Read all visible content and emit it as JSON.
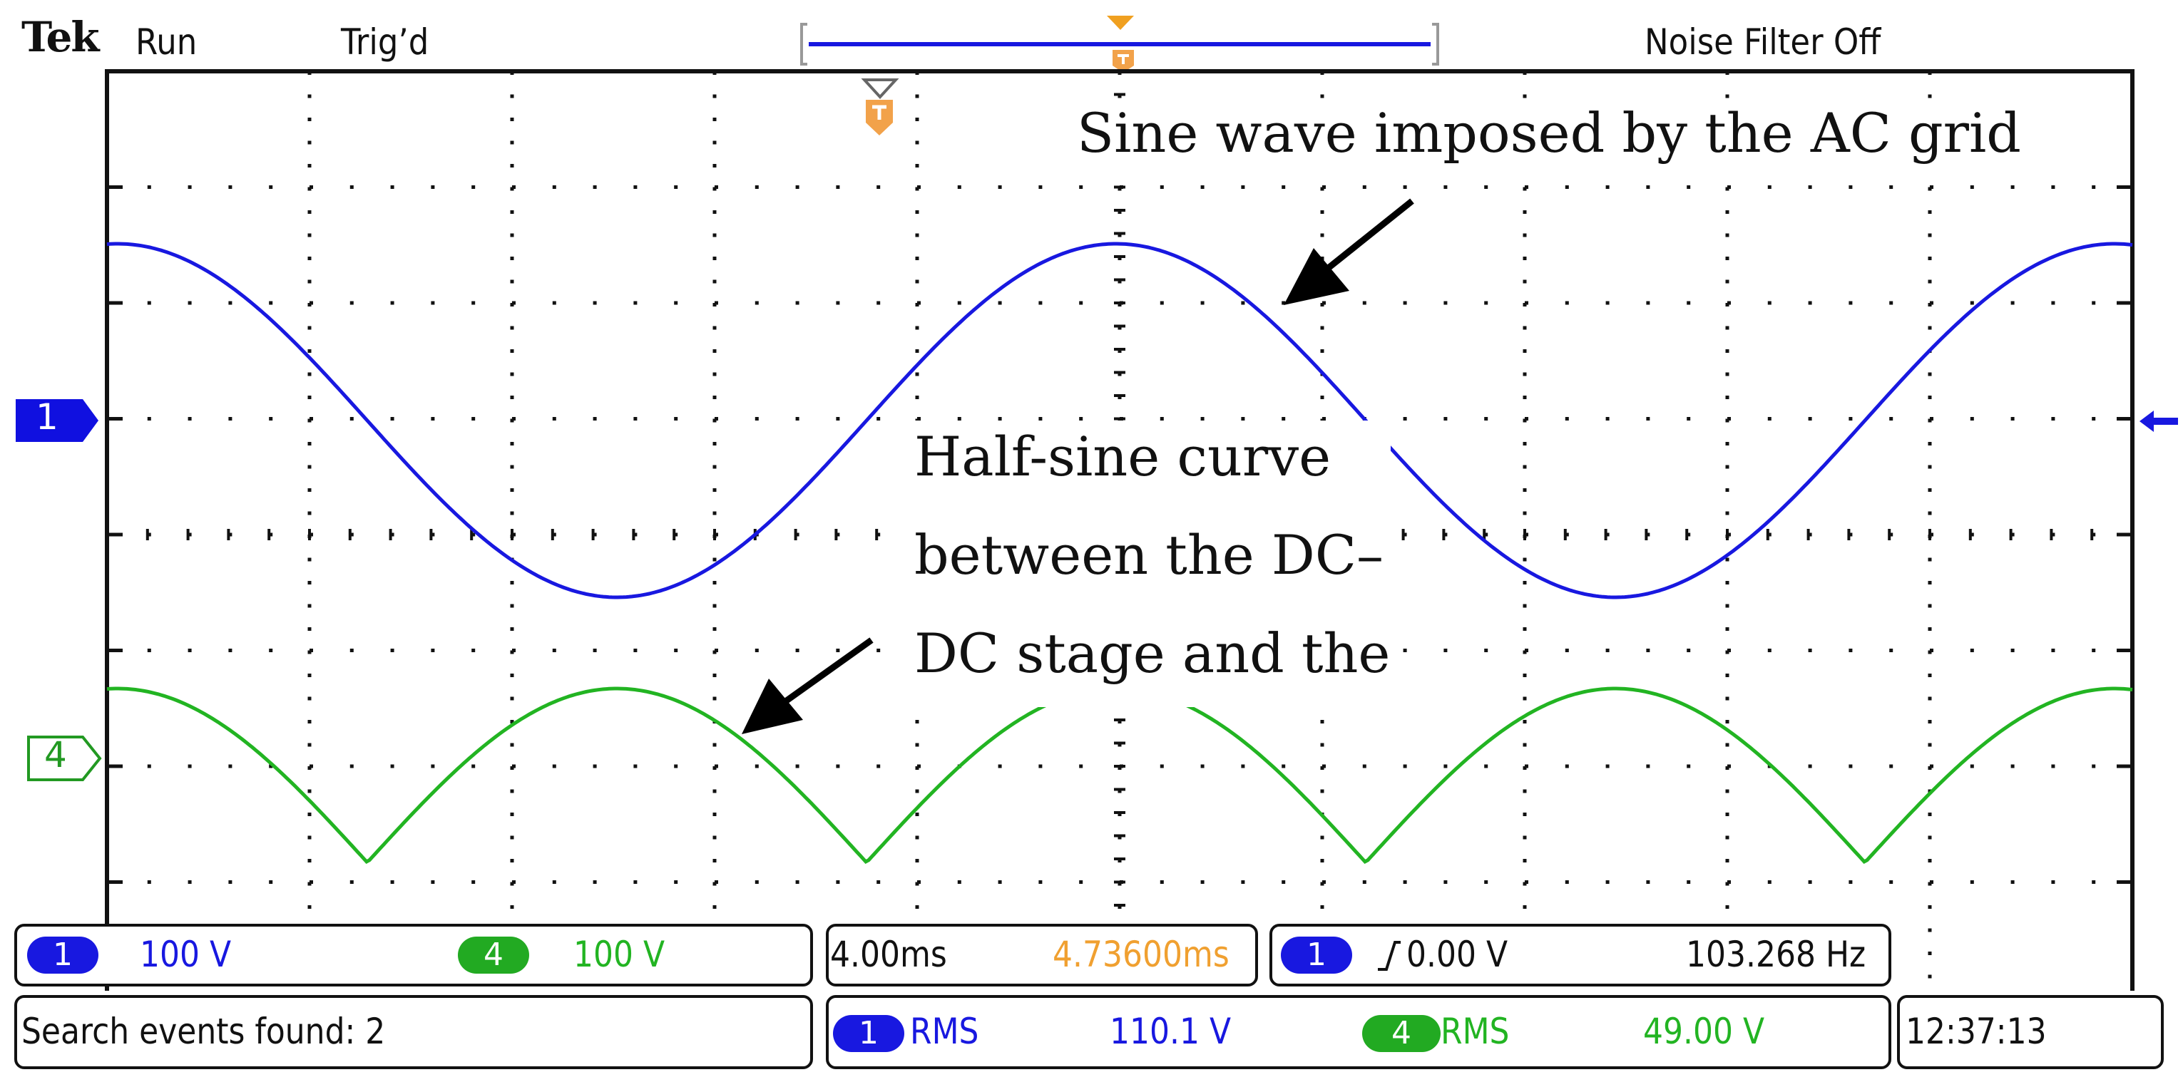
{
  "header": {
    "brand": "Tek",
    "run_state": "Run",
    "trigger_state": "Trig’d",
    "noise_filter": "Noise Filter Off"
  },
  "annotations": {
    "sine_label": "Sine wave imposed by the AC grid",
    "half_sine_line1": "Half-sine curve",
    "half_sine_line2": "between the DC–",
    "half_sine_line3": "DC stage and the"
  },
  "channels": {
    "ch1": {
      "marker": "1",
      "scale": "100 V",
      "color": "#1818e0"
    },
    "ch4": {
      "marker": "4",
      "scale": "100 V",
      "color": "#22b422"
    }
  },
  "timebase": {
    "scale": "4.00ms",
    "position": "4.73600ms",
    "position_color": "#f0a030"
  },
  "trigger": {
    "source": "1",
    "level": "0.00 V",
    "frequency": "103.268 Hz"
  },
  "search": {
    "text": "Search events found: 2"
  },
  "measurements": {
    "m1_source": "1",
    "m1_type": "RMS",
    "m1_value": "110.1 V",
    "m2_source": "4",
    "m2_type": "RMS",
    "m2_value": "49.00 V"
  },
  "clock": "12:37:13"
}
